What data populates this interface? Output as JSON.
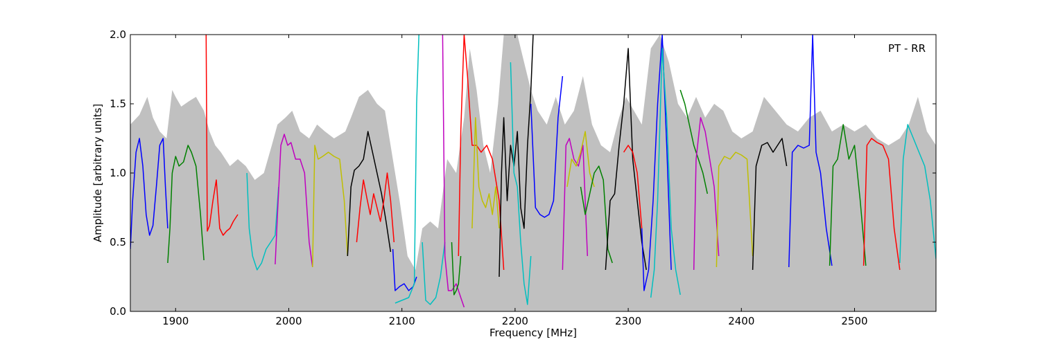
{
  "chart_data": {
    "type": "line",
    "title": "",
    "xlabel": "Frequency [MHz]",
    "ylabel": "Amplitude [arbitrary units]",
    "xlim": [
      1860,
      2572
    ],
    "ylim": [
      0.0,
      2.0
    ],
    "xticks": [
      1900,
      2000,
      2100,
      2200,
      2300,
      2400,
      2500
    ],
    "xtick_labels": [
      "1900",
      "2000",
      "2100",
      "2200",
      "2300",
      "2400",
      "2500"
    ],
    "yticks": [
      0.0,
      0.5,
      1.0,
      1.5,
      2.0
    ],
    "ytick_labels": [
      "0.0",
      "0.5",
      "1.0",
      "1.5",
      "2.0"
    ],
    "grid": false,
    "annotation": "PT - RR",
    "annotation_position": "top-right",
    "background_envelope": {
      "color": "#c0c0c0",
      "x": [
        1860,
        1868,
        1875,
        1880,
        1886,
        1892,
        1897,
        1900,
        1905,
        1912,
        1918,
        1925,
        1930,
        1935,
        1940,
        1948,
        1955,
        1962,
        1970,
        1978,
        1985,
        1990,
        1997,
        2003,
        2010,
        2018,
        2025,
        2032,
        2040,
        2050,
        2055,
        2062,
        2070,
        2078,
        2085,
        2092,
        2098,
        2105,
        2112,
        2118,
        2125,
        2132,
        2140,
        2148,
        2155,
        2160,
        2166,
        2172,
        2178,
        2185,
        2190,
        2196,
        2202,
        2208,
        2214,
        2220,
        2228,
        2236,
        2244,
        2252,
        2260,
        2268,
        2276,
        2284,
        2292,
        2298,
        2305,
        2312,
        2320,
        2328,
        2336,
        2344,
        2352,
        2360,
        2368,
        2376,
        2384,
        2392,
        2400,
        2410,
        2420,
        2430,
        2440,
        2450,
        2460,
        2470,
        2480,
        2490,
        2500,
        2510,
        2520,
        2530,
        2540,
        2548,
        2556,
        2564,
        2572
      ],
      "y": [
        1.35,
        1.42,
        1.55,
        1.4,
        1.3,
        1.25,
        1.6,
        1.55,
        1.48,
        1.52,
        1.55,
        1.45,
        1.3,
        1.2,
        1.15,
        1.05,
        1.1,
        1.05,
        0.95,
        1.0,
        1.2,
        1.35,
        1.4,
        1.45,
        1.3,
        1.25,
        1.35,
        1.3,
        1.25,
        1.3,
        1.4,
        1.55,
        1.6,
        1.5,
        1.45,
        1.1,
        0.8,
        0.4,
        0.3,
        0.6,
        0.65,
        0.6,
        1.1,
        1.0,
        1.4,
        1.9,
        1.6,
        1.2,
        1.0,
        1.5,
        2.0,
        2.0,
        2.0,
        1.8,
        1.6,
        1.45,
        1.35,
        1.55,
        1.35,
        1.45,
        1.7,
        1.35,
        1.2,
        1.15,
        1.4,
        1.55,
        1.45,
        1.35,
        1.9,
        2.0,
        1.8,
        1.5,
        1.4,
        1.55,
        1.4,
        1.5,
        1.45,
        1.3,
        1.25,
        1.3,
        1.55,
        1.45,
        1.35,
        1.3,
        1.4,
        1.45,
        1.3,
        1.35,
        1.3,
        1.35,
        1.25,
        1.2,
        1.25,
        1.35,
        1.55,
        1.3,
        1.2
      ]
    },
    "series": [
      {
        "color": "#0000ff",
        "x": [
          1860,
          1862,
          1865,
          1868,
          1871,
          1874,
          1877,
          1880,
          1883,
          1886,
          1889,
          1891,
          1893
        ],
        "y": [
          0.45,
          0.8,
          1.15,
          1.25,
          1.05,
          0.7,
          0.55,
          0.62,
          0.9,
          1.2,
          1.25,
          0.9,
          0.6
        ]
      },
      {
        "color": "#008000",
        "x": [
          1893,
          1895,
          1897,
          1900,
          1903,
          1907,
          1911,
          1914,
          1918,
          1922,
          1925
        ],
        "y": [
          0.35,
          0.6,
          1.0,
          1.12,
          1.05,
          1.08,
          1.2,
          1.15,
          1.05,
          0.7,
          0.37
        ]
      },
      {
        "color": "#ff0000",
        "x": [
          1927,
          1928,
          1930,
          1933,
          1936,
          1939,
          1942,
          1945,
          1948,
          1951,
          1955
        ],
        "y": [
          2.0,
          0.58,
          0.62,
          0.8,
          0.95,
          0.6,
          0.55,
          0.58,
          0.6,
          0.65,
          0.7
        ]
      },
      {
        "color": "#00bfbf",
        "x": [
          1963,
          1965,
          1968,
          1972,
          1976,
          1980,
          1984,
          1988,
          1991
        ],
        "y": [
          1.0,
          0.6,
          0.4,
          0.3,
          0.35,
          0.45,
          0.5,
          0.55,
          0.9
        ]
      },
      {
        "color": "#bf00bf",
        "x": [
          1988,
          1990,
          1993,
          1996,
          1999,
          2002,
          2006,
          2010,
          2014,
          2018,
          2021
        ],
        "y": [
          0.34,
          0.7,
          1.2,
          1.28,
          1.2,
          1.22,
          1.1,
          1.1,
          1.0,
          0.5,
          0.32
        ]
      },
      {
        "color": "#bfbf00",
        "x": [
          2021,
          2023,
          2026,
          2030,
          2035,
          2040,
          2045,
          2049,
          2052
        ],
        "y": [
          0.32,
          1.2,
          1.1,
          1.12,
          1.15,
          1.12,
          1.1,
          0.8,
          0.4
        ]
      },
      {
        "color": "#000000",
        "x": [
          2052,
          2055,
          2058,
          2062,
          2066,
          2070,
          2074,
          2078,
          2082,
          2086,
          2090
        ],
        "y": [
          0.4,
          0.9,
          1.02,
          1.05,
          1.1,
          1.3,
          1.15,
          1.0,
          0.85,
          0.65,
          0.43
        ]
      },
      {
        "color": "#ff0000",
        "x": [
          2060,
          2063,
          2066,
          2069,
          2072,
          2075,
          2078,
          2081,
          2084,
          2087,
          2090,
          2093
        ],
        "y": [
          0.5,
          0.75,
          0.95,
          0.82,
          0.7,
          0.85,
          0.75,
          0.65,
          0.8,
          1.0,
          0.8,
          0.5
        ]
      },
      {
        "color": "#0000ff",
        "x": [
          2092,
          2094,
          2098,
          2102,
          2106,
          2110,
          2113
        ],
        "y": [
          0.45,
          0.15,
          0.18,
          0.2,
          0.15,
          0.18,
          0.25
        ]
      },
      {
        "color": "#00bfbf",
        "x": [
          2094,
          2100,
          2106,
          2111,
          2113,
          2115
        ],
        "y": [
          0.06,
          0.08,
          0.1,
          0.2,
          1.5,
          2.0
        ]
      },
      {
        "color": "#00bfbf",
        "x": [
          2118,
          2121,
          2125,
          2130,
          2134,
          2138
        ],
        "y": [
          0.5,
          0.08,
          0.05,
          0.1,
          0.25,
          0.5
        ]
      },
      {
        "color": "#bf00bf",
        "x": [
          2136,
          2138,
          2141,
          2144,
          2148,
          2152,
          2155
        ],
        "y": [
          2.0,
          0.4,
          0.15,
          0.15,
          0.2,
          0.1,
          0.03
        ]
      },
      {
        "color": "#008000",
        "x": [
          2144,
          2146,
          2148,
          2150,
          2152
        ],
        "y": [
          0.5,
          0.12,
          0.15,
          0.2,
          0.4
        ]
      },
      {
        "color": "#ff0000",
        "x": [
          2150,
          2152,
          2155,
          2158,
          2162,
          2166,
          2170,
          2175,
          2180,
          2186,
          2190
        ],
        "y": [
          0.4,
          1.3,
          2.0,
          1.7,
          1.2,
          1.2,
          1.15,
          1.2,
          1.1,
          0.8,
          0.3
        ]
      },
      {
        "color": "#bfbf00",
        "x": [
          2162,
          2165,
          2168,
          2171,
          2174,
          2177,
          2180,
          2183,
          2186
        ],
        "y": [
          0.6,
          1.4,
          0.9,
          0.8,
          0.75,
          0.85,
          0.7,
          0.9,
          0.6
        ]
      },
      {
        "color": "#000000",
        "x": [
          2186,
          2188,
          2190,
          2193,
          2196,
          2199,
          2202,
          2205,
          2208,
          2211,
          2214,
          2216
        ],
        "y": [
          0.25,
          1.0,
          1.4,
          0.8,
          1.2,
          1.05,
          1.3,
          0.75,
          0.6,
          1.2,
          1.6,
          2.0
        ]
      },
      {
        "color": "#00bfbf",
        "x": [
          2196,
          2199,
          2202,
          2205,
          2208,
          2211,
          2214
        ],
        "y": [
          1.8,
          1.0,
          0.9,
          0.5,
          0.2,
          0.05,
          0.4
        ]
      },
      {
        "color": "#0000ff",
        "x": [
          2214,
          2218,
          2222,
          2226,
          2230,
          2234,
          2238,
          2242
        ],
        "y": [
          1.5,
          0.75,
          0.7,
          0.68,
          0.7,
          0.8,
          1.4,
          1.7
        ]
      },
      {
        "color": "#bf00bf",
        "x": [
          2242,
          2245,
          2248,
          2252,
          2256,
          2260,
          2264
        ],
        "y": [
          0.3,
          1.2,
          1.25,
          1.1,
          1.05,
          1.2,
          0.4
        ]
      },
      {
        "color": "#bfbf00",
        "x": [
          2246,
          2250,
          2254,
          2258,
          2262,
          2266,
          2270
        ],
        "y": [
          0.9,
          1.1,
          1.05,
          1.15,
          1.3,
          1.0,
          0.9
        ]
      },
      {
        "color": "#008000",
        "x": [
          2258,
          2262,
          2266,
          2270,
          2274,
          2278,
          2282,
          2286
        ],
        "y": [
          0.9,
          0.7,
          0.85,
          1.0,
          1.05,
          0.95,
          0.45,
          0.35
        ]
      },
      {
        "color": "#000000",
        "x": [
          2280,
          2284,
          2288,
          2292,
          2296,
          2300,
          2304,
          2308,
          2312,
          2316
        ],
        "y": [
          0.3,
          0.8,
          0.85,
          1.2,
          1.5,
          1.9,
          1.1,
          0.8,
          0.5,
          0.3
        ]
      },
      {
        "color": "#ff0000",
        "x": [
          2296,
          2300,
          2304,
          2308,
          2312
        ],
        "y": [
          1.15,
          1.2,
          1.15,
          1.0,
          0.6
        ]
      },
      {
        "color": "#0000ff",
        "x": [
          2312,
          2314,
          2318,
          2322,
          2326,
          2330,
          2334,
          2338
        ],
        "y": [
          0.6,
          0.15,
          0.3,
          0.8,
          1.5,
          2.0,
          1.2,
          0.3
        ]
      },
      {
        "color": "#00bfbf",
        "x": [
          2320,
          2323,
          2326,
          2330,
          2334,
          2338,
          2342,
          2346
        ],
        "y": [
          0.1,
          0.3,
          0.8,
          1.9,
          1.4,
          0.6,
          0.3,
          0.12
        ]
      },
      {
        "color": "#008000",
        "x": [
          2346,
          2350,
          2354,
          2358,
          2362,
          2366,
          2370
        ],
        "y": [
          1.6,
          1.5,
          1.35,
          1.2,
          1.1,
          1.0,
          0.85
        ]
      },
      {
        "color": "#bf00bf",
        "x": [
          2358,
          2360,
          2364,
          2368,
          2372,
          2376,
          2380
        ],
        "y": [
          0.3,
          1.1,
          1.4,
          1.3,
          1.1,
          0.9,
          0.4
        ]
      },
      {
        "color": "#bfbf00",
        "x": [
          2378,
          2380,
          2385,
          2390,
          2395,
          2400,
          2405,
          2410
        ],
        "y": [
          0.32,
          1.05,
          1.12,
          1.1,
          1.15,
          1.13,
          1.1,
          0.4
        ]
      },
      {
        "color": "#000000",
        "x": [
          2410,
          2413,
          2418,
          2423,
          2428,
          2432,
          2436,
          2440
        ],
        "y": [
          0.3,
          1.05,
          1.2,
          1.22,
          1.15,
          1.2,
          1.25,
          1.05
        ]
      },
      {
        "color": "#0000ff",
        "x": [
          2442,
          2445,
          2450,
          2455,
          2460,
          2463,
          2466,
          2470,
          2475,
          2480
        ],
        "y": [
          0.32,
          1.15,
          1.2,
          1.18,
          1.2,
          2.0,
          1.15,
          1.0,
          0.6,
          0.33
        ]
      },
      {
        "color": "#008000",
        "x": [
          2478,
          2481,
          2485,
          2490,
          2495,
          2500,
          2505,
          2510
        ],
        "y": [
          0.33,
          1.05,
          1.1,
          1.35,
          1.1,
          1.2,
          0.8,
          0.33
        ]
      },
      {
        "color": "#ff0000",
        "x": [
          2508,
          2511,
          2515,
          2520,
          2525,
          2530,
          2535,
          2540
        ],
        "y": [
          0.33,
          1.2,
          1.25,
          1.22,
          1.2,
          1.1,
          0.6,
          0.3
        ]
      },
      {
        "color": "#00bfbf",
        "x": [
          2540,
          2543,
          2547,
          2552,
          2557,
          2562,
          2567,
          2572
        ],
        "y": [
          0.35,
          1.1,
          1.35,
          1.25,
          1.15,
          1.05,
          0.8,
          0.38
        ]
      }
    ]
  }
}
